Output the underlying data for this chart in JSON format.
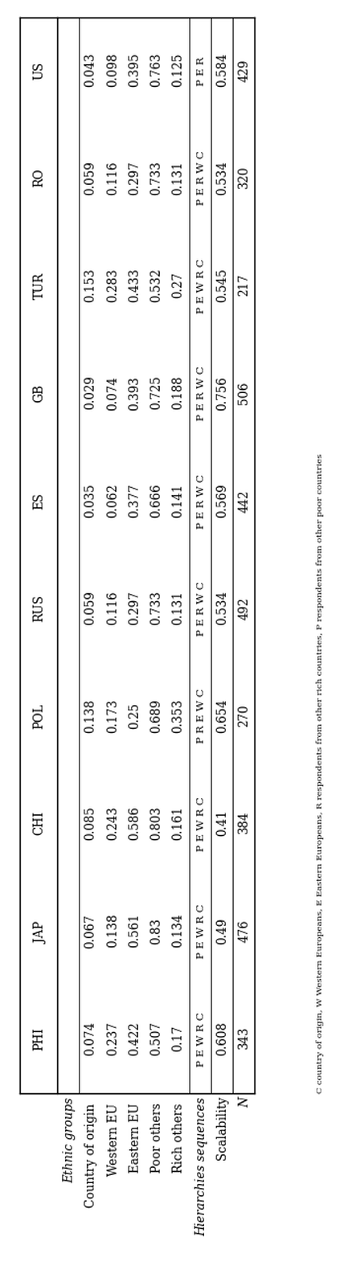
{
  "columns": [
    "PHI",
    "JAP",
    "CHI",
    "POL",
    "RUS",
    "ES",
    "GB",
    "TUR",
    "RO",
    "US"
  ],
  "row_labels": [
    "Ethnic groups",
    "Country of origin",
    "Western EU",
    "Eastern EU",
    "Poor others",
    "Rich others",
    "Hierarchies sequences",
    "Scalability",
    "N"
  ],
  "row_label_italic": [
    true,
    false,
    false,
    false,
    false,
    false,
    true,
    false,
    true
  ],
  "data": {
    "PHI": [
      "",
      "0.074",
      "0.237",
      "0.422",
      "0.507",
      "0.17",
      "P E W R C",
      "0.608",
      "343"
    ],
    "JAP": [
      "",
      "0.067",
      "0.138",
      "0.561",
      "0.83",
      "0.134",
      "P E W R C",
      "0.49",
      "476"
    ],
    "CHI": [
      "",
      "0.085",
      "0.243",
      "0.586",
      "0.803",
      "0.161",
      "P E W R C",
      "0.41",
      "384"
    ],
    "POL": [
      "",
      "0.138",
      "0.173",
      "0.25",
      "0.689",
      "0.353",
      "P R E W C",
      "0.654",
      "270"
    ],
    "RUS": [
      "",
      "0.059",
      "0.116",
      "0.297",
      "0.733",
      "0.131",
      "P E R W C",
      "0.534",
      "492"
    ],
    "ES": [
      "",
      "0.035",
      "0.062",
      "0.377",
      "0.666",
      "0.141",
      "P E R W C",
      "0.569",
      "442"
    ],
    "GB": [
      "",
      "0.029",
      "0.074",
      "0.393",
      "0.725",
      "0.188",
      "P E R W C",
      "0.756",
      "506"
    ],
    "TUR": [
      "",
      "0.153",
      "0.283",
      "0.433",
      "0.532",
      "0.27",
      "P E W R C",
      "0.545",
      "217"
    ],
    "RO": [
      "",
      "0.059",
      "0.116",
      "0.297",
      "0.733",
      "0.131",
      "P E R W C",
      "0.534",
      "320"
    ],
    "US": [
      "",
      "0.043",
      "0.098",
      "0.395",
      "0.763",
      "0.125",
      "P E R",
      "0.584",
      "429"
    ]
  },
  "footnote_line1": "C country of origin, W Western Europeans, E Eastern Europeans, R respondents from other rich countries, P respondents from other poor countries",
  "bg_color": "#ffffff",
  "text_color": "#000000"
}
